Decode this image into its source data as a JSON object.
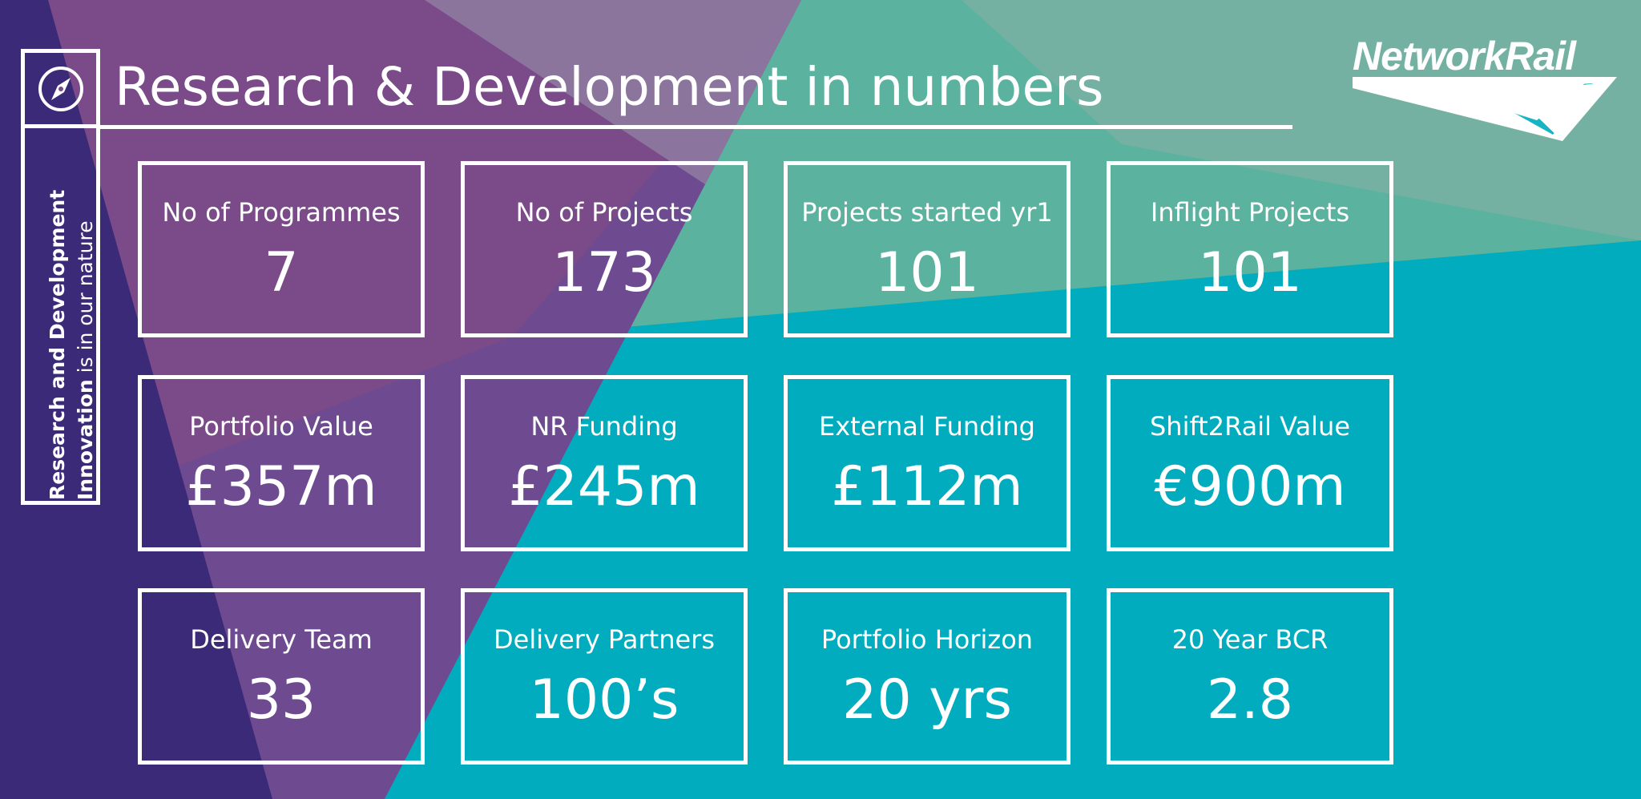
{
  "header": {
    "title": "Research & Development in numbers",
    "side_title": "Research and Development",
    "side_tagline_bold": "Innovation",
    "side_tagline_rest": " is in our nature",
    "logo_text": "NetworkRail"
  },
  "colors": {
    "teal": "#00acbd",
    "purple": "#7c4b8c",
    "dark_purple": "#3a2a7a",
    "green": "#6bb39a",
    "white": "#ffffff"
  },
  "icons": [
    "compass-icon",
    "network-rail-logo"
  ],
  "metrics": [
    {
      "label": "No of Programmes",
      "value": "7"
    },
    {
      "label": "No of Projects",
      "value": "173"
    },
    {
      "label": "Projects started yr1",
      "value": "101"
    },
    {
      "label": "Inflight Projects",
      "value": "101"
    },
    {
      "label": "Portfolio Value",
      "value": "£357m"
    },
    {
      "label": "NR Funding",
      "value": "£245m"
    },
    {
      "label": "External Funding",
      "value": "£112m"
    },
    {
      "label": "Shift2Rail Value",
      "value": "€900m"
    },
    {
      "label": "Delivery Team",
      "value": "33"
    },
    {
      "label": "Delivery Partners",
      "value": "100’s"
    },
    {
      "label": "Portfolio Horizon",
      "value": "20 yrs"
    },
    {
      "label": "20 Year BCR",
      "value": "2.8"
    }
  ]
}
